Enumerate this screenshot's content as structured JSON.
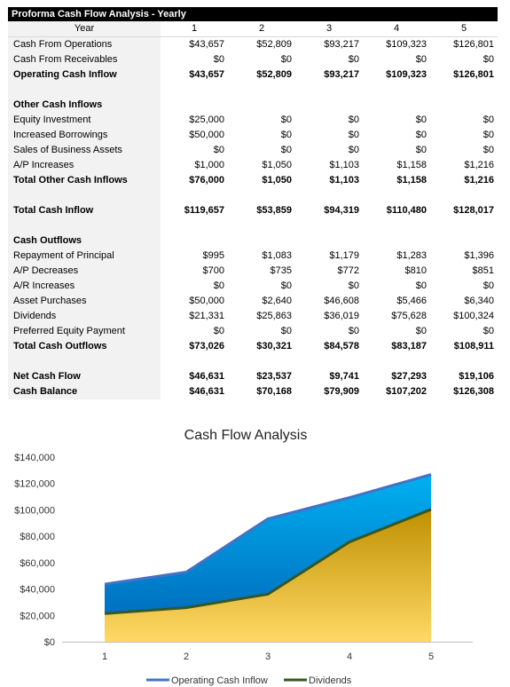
{
  "sheet": {
    "title": "Proforma Cash Flow Analysis - Yearly",
    "year_label": "Year",
    "years": [
      "1",
      "2",
      "3",
      "4",
      "5"
    ],
    "rows": [
      {
        "label": "Cash From Operations",
        "bold": false,
        "values": [
          "$43,657",
          "$52,809",
          "$93,217",
          "$109,323",
          "$126,801"
        ]
      },
      {
        "label": "Cash From Receivables",
        "bold": false,
        "values": [
          "$0",
          "$0",
          "$0",
          "$0",
          "$0"
        ]
      },
      {
        "label": "Operating Cash Inflow",
        "bold": true,
        "values": [
          "$43,657",
          "$52,809",
          "$93,217",
          "$109,323",
          "$126,801"
        ]
      },
      {
        "blank": true
      },
      {
        "label": "Other Cash Inflows",
        "bold": true,
        "values": [
          "",
          "",
          "",
          "",
          ""
        ]
      },
      {
        "label": "Equity Investment",
        "bold": false,
        "values": [
          "$25,000",
          "$0",
          "$0",
          "$0",
          "$0"
        ]
      },
      {
        "label": "Increased Borrowings",
        "bold": false,
        "values": [
          "$50,000",
          "$0",
          "$0",
          "$0",
          "$0"
        ]
      },
      {
        "label": "Sales of Business Assets",
        "bold": false,
        "values": [
          "$0",
          "$0",
          "$0",
          "$0",
          "$0"
        ]
      },
      {
        "label": "A/P Increases",
        "bold": false,
        "values": [
          "$1,000",
          "$1,050",
          "$1,103",
          "$1,158",
          "$1,216"
        ]
      },
      {
        "label": "Total Other Cash Inflows",
        "bold": true,
        "values": [
          "$76,000",
          "$1,050",
          "$1,103",
          "$1,158",
          "$1,216"
        ]
      },
      {
        "blank": true
      },
      {
        "label": "Total Cash Inflow",
        "bold": true,
        "values": [
          "$119,657",
          "$53,859",
          "$94,319",
          "$110,480",
          "$128,017"
        ]
      },
      {
        "blank": true
      },
      {
        "label": "Cash Outflows",
        "bold": true,
        "values": [
          "",
          "",
          "",
          "",
          ""
        ]
      },
      {
        "label": "Repayment of Principal",
        "bold": false,
        "values": [
          "$995",
          "$1,083",
          "$1,179",
          "$1,283",
          "$1,396"
        ]
      },
      {
        "label": "A/P Decreases",
        "bold": false,
        "values": [
          "$700",
          "$735",
          "$772",
          "$810",
          "$851"
        ]
      },
      {
        "label": "A/R Increases",
        "bold": false,
        "values": [
          "$0",
          "$0",
          "$0",
          "$0",
          "$0"
        ]
      },
      {
        "label": "Asset Purchases",
        "bold": false,
        "values": [
          "$50,000",
          "$2,640",
          "$46,608",
          "$5,466",
          "$6,340"
        ]
      },
      {
        "label": "Dividends",
        "bold": false,
        "values": [
          "$21,331",
          "$25,863",
          "$36,019",
          "$75,628",
          "$100,324"
        ]
      },
      {
        "label": "Preferred Equity Payment",
        "bold": false,
        "values": [
          "$0",
          "$0",
          "$0",
          "$0",
          "$0"
        ]
      },
      {
        "label": "Total Cash Outflows",
        "bold": true,
        "values": [
          "$73,026",
          "$30,321",
          "$84,578",
          "$83,187",
          "$108,911"
        ]
      },
      {
        "blank": true
      },
      {
        "label": "Net Cash Flow",
        "bold": true,
        "values": [
          "$46,631",
          "$23,537",
          "$9,741",
          "$27,293",
          "$19,106"
        ]
      },
      {
        "label": "Cash Balance",
        "bold": true,
        "values": [
          "$46,631",
          "$70,168",
          "$79,909",
          "$107,202",
          "$126,308"
        ]
      }
    ]
  },
  "chart_data": {
    "type": "area",
    "title": "Cash Flow Analysis",
    "categories": [
      "1",
      "2",
      "3",
      "4",
      "5"
    ],
    "series": [
      {
        "name": "Operating Cash Inflow",
        "values": [
          43657,
          52809,
          93217,
          109323,
          126801
        ],
        "color": "#4472c4"
      },
      {
        "name": "Dividends",
        "values": [
          21331,
          25863,
          36019,
          75628,
          100324
        ],
        "color": "#375623"
      }
    ],
    "ylim": [
      0,
      140000
    ],
    "y_ticks": [
      "$0",
      "$20,000",
      "$40,000",
      "$60,000",
      "$80,000",
      "$100,000",
      "$120,000",
      "$140,000"
    ],
    "grid": false,
    "legend": "bottom",
    "fill_colors": {
      "top_area": "#1aa3e0",
      "bottom_area": "#f0c040"
    }
  }
}
